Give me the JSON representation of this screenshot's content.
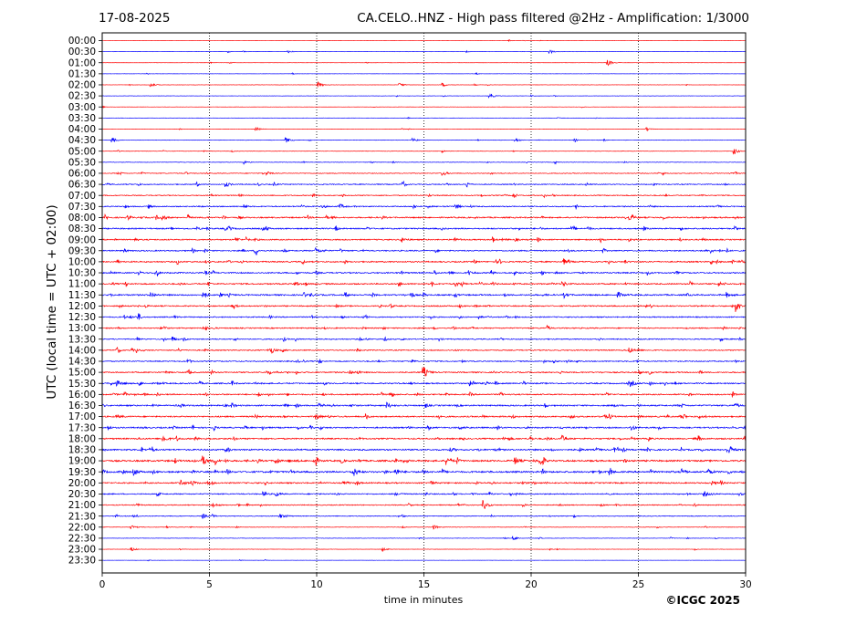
{
  "header": {
    "date": "17-08-2025",
    "title": "CA.CELO..HNZ - High pass filtered @2Hz - Amplification: 1/3000"
  },
  "footer": {
    "copyright": "©ICGC 2025"
  },
  "colors": {
    "trace_a": "#ff0000",
    "trace_b": "#0000ff",
    "grid": "#000000",
    "axes": "#000000"
  },
  "chart_data": {
    "type": "line",
    "title": "CA.CELO..HNZ - High pass filtered @2Hz - Amplification: 1/3000",
    "xlabel": "time in minutes",
    "ylabel": "UTC (local time = UTC + 02:00)",
    "xlim": [
      0,
      30
    ],
    "x_ticks": [
      0,
      5,
      10,
      15,
      20,
      25,
      30
    ],
    "vertical_grid": [
      5,
      10,
      15,
      20,
      25
    ],
    "grid_style": "dotted",
    "row_colors_cycle": [
      "#ff0000",
      "#0000ff"
    ],
    "rows": [
      "00:00",
      "00:30",
      "01:00",
      "01:30",
      "02:00",
      "02:30",
      "03:00",
      "03:30",
      "04:00",
      "04:30",
      "05:00",
      "05:30",
      "06:00",
      "06:30",
      "07:00",
      "07:30",
      "08:00",
      "08:30",
      "09:00",
      "09:30",
      "10:00",
      "10:30",
      "11:00",
      "11:30",
      "12:00",
      "12:30",
      "13:00",
      "13:30",
      "14:00",
      "14:30",
      "15:00",
      "15:30",
      "16:00",
      "16:30",
      "17:00",
      "17:30",
      "18:00",
      "18:30",
      "19:00",
      "19:30",
      "20:00",
      "20:30",
      "21:00",
      "21:30",
      "22:00",
      "22:30",
      "23:00",
      "23:30"
    ],
    "noise_level": [
      0.2,
      0.2,
      0.2,
      0.2,
      0.3,
      0.3,
      0.2,
      0.2,
      0.3,
      0.4,
      0.4,
      0.5,
      0.8,
      1.0,
      1.0,
      1.2,
      1.4,
      1.4,
      1.3,
      1.3,
      1.4,
      1.4,
      1.4,
      1.5,
      1.3,
      1.2,
      1.2,
      1.1,
      1.1,
      1.1,
      1.3,
      1.4,
      1.4,
      1.5,
      1.5,
      1.5,
      1.5,
      1.6,
      1.8,
      1.8,
      1.4,
      1.2,
      1.0,
      0.8,
      0.5,
      0.4,
      0.3,
      0.2
    ],
    "events": [
      {
        "row": 1,
        "t": 8.7,
        "amp": 1.5
      },
      {
        "row": 1,
        "t": 20.9,
        "amp": 2
      },
      {
        "row": 2,
        "t": 23.6,
        "amp": 3
      },
      {
        "row": 4,
        "t": 2.3,
        "amp": 2
      },
      {
        "row": 4,
        "t": 10.1,
        "amp": 3
      },
      {
        "row": 4,
        "t": 13.9,
        "amp": 2
      },
      {
        "row": 4,
        "t": 15.9,
        "amp": 2
      },
      {
        "row": 5,
        "t": 18.1,
        "amp": 3
      },
      {
        "row": 8,
        "t": 7.2,
        "amp": 2
      },
      {
        "row": 8,
        "t": 25.4,
        "amp": 2
      },
      {
        "row": 9,
        "t": 0.5,
        "amp": 3
      },
      {
        "row": 9,
        "t": 8.6,
        "amp": 2.5
      },
      {
        "row": 9,
        "t": 14.5,
        "amp": 2
      },
      {
        "row": 9,
        "t": 19.3,
        "amp": 2
      },
      {
        "row": 10,
        "t": 29.5,
        "amp": 3
      },
      {
        "row": 11,
        "t": 6.6,
        "amp": 2
      },
      {
        "row": 12,
        "t": 15.9,
        "amp": 2.5
      },
      {
        "row": 12,
        "t": 7.7,
        "amp": 2
      },
      {
        "row": 13,
        "t": 5.8,
        "amp": 2.5
      },
      {
        "row": 15,
        "t": 11.1,
        "amp": 2.5
      },
      {
        "row": 15,
        "t": 16.5,
        "amp": 2.5
      },
      {
        "row": 16,
        "t": 2.8,
        "amp": 3
      },
      {
        "row": 16,
        "t": 24.6,
        "amp": 2.5
      },
      {
        "row": 18,
        "t": 14.0,
        "amp": 2.5
      },
      {
        "row": 19,
        "t": 10.0,
        "amp": 3
      },
      {
        "row": 22,
        "t": 16.5,
        "amp": 2.5
      },
      {
        "row": 22,
        "t": 21.5,
        "amp": 2.5
      },
      {
        "row": 23,
        "t": 2.3,
        "amp": 2.5
      },
      {
        "row": 23,
        "t": 24.1,
        "amp": 2.5
      },
      {
        "row": 24,
        "t": 29.6,
        "amp": 6
      },
      {
        "row": 27,
        "t": 3.3,
        "amp": 2.5
      },
      {
        "row": 28,
        "t": 7.9,
        "amp": 3
      },
      {
        "row": 28,
        "t": 24.6,
        "amp": 2.5
      },
      {
        "row": 30,
        "t": 15.0,
        "amp": 6
      },
      {
        "row": 31,
        "t": 0.7,
        "amp": 3
      },
      {
        "row": 31,
        "t": 24.7,
        "amp": 2.5
      },
      {
        "row": 33,
        "t": 13.3,
        "amp": 3
      },
      {
        "row": 34,
        "t": 10.0,
        "amp": 3
      },
      {
        "row": 34,
        "t": 23.4,
        "amp": 2.5
      },
      {
        "row": 35,
        "t": 24.7,
        "amp": 3
      },
      {
        "row": 36,
        "t": 2.9,
        "amp": 3
      },
      {
        "row": 36,
        "t": 21.5,
        "amp": 2.5
      },
      {
        "row": 37,
        "t": 29.3,
        "amp": 3
      },
      {
        "row": 38,
        "t": 4.7,
        "amp": 5
      },
      {
        "row": 38,
        "t": 16.1,
        "amp": 4
      },
      {
        "row": 38,
        "t": 19.3,
        "amp": 3.5
      },
      {
        "row": 39,
        "t": 1.5,
        "amp": 3.5
      },
      {
        "row": 39,
        "t": 11.7,
        "amp": 6
      },
      {
        "row": 39,
        "t": 13.7,
        "amp": 3.5
      },
      {
        "row": 39,
        "t": 28.3,
        "amp": 2.5
      },
      {
        "row": 40,
        "t": 4.2,
        "amp": 2.5
      },
      {
        "row": 40,
        "t": 15.3,
        "amp": 2.5
      },
      {
        "row": 41,
        "t": 8.1,
        "amp": 2.5
      },
      {
        "row": 41,
        "t": 28.1,
        "amp": 2.5
      },
      {
        "row": 42,
        "t": 5.2,
        "amp": 2.5
      },
      {
        "row": 42,
        "t": 17.8,
        "amp": 5
      },
      {
        "row": 43,
        "t": 4.7,
        "amp": 2.5
      },
      {
        "row": 43,
        "t": 8.3,
        "amp": 2.5
      },
      {
        "row": 44,
        "t": 1.4,
        "amp": 2
      },
      {
        "row": 44,
        "t": 15.5,
        "amp": 2
      },
      {
        "row": 45,
        "t": 19.2,
        "amp": 2
      },
      {
        "row": 46,
        "t": 1.4,
        "amp": 2
      },
      {
        "row": 46,
        "t": 13.1,
        "amp": 2
      }
    ]
  }
}
